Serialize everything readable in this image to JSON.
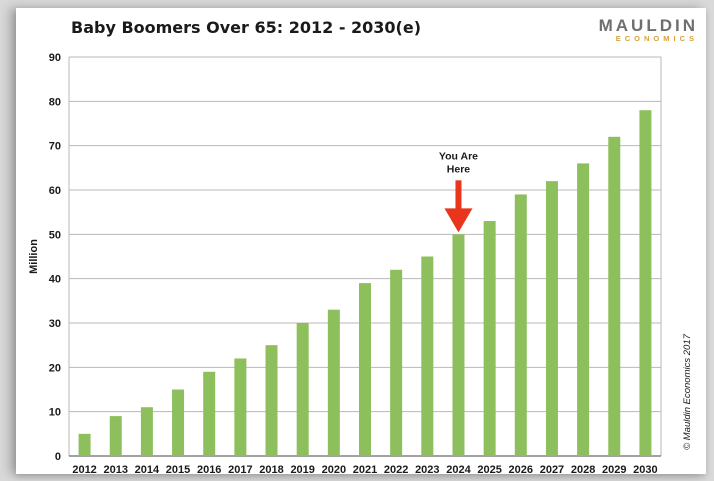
{
  "page": {
    "title": "Baby Boomers Over 65: 2012 - 2030(e)",
    "logo": {
      "top": "MAULDIN",
      "bottom": "ECONOMICS"
    },
    "copyright": "© Mauldin Economics 2017"
  },
  "colors": {
    "bar": "#8dbf5c",
    "arrow": "#e8351c",
    "grid": "#b8b8b8"
  },
  "chart_data": {
    "type": "bar",
    "title": "Baby Boomers Over 65: 2012 - 2030(e)",
    "xlabel": "",
    "ylabel": "Million",
    "ylim": [
      0,
      90
    ],
    "yticks": [
      0,
      10,
      20,
      30,
      40,
      50,
      60,
      70,
      80,
      90
    ],
    "grid": true,
    "categories": [
      "2012",
      "2013",
      "2014",
      "2015",
      "2016",
      "2017",
      "2018",
      "2019",
      "2020",
      "2021",
      "2022",
      "2023",
      "2024",
      "2025",
      "2026",
      "2027",
      "2028",
      "2029",
      "2030"
    ],
    "values": [
      5,
      9,
      11,
      15,
      19,
      22,
      25,
      30,
      33,
      39,
      42,
      45,
      50,
      53,
      59,
      62,
      66,
      72,
      78
    ],
    "annotation": {
      "text_lines": [
        "You Are",
        "Here"
      ],
      "category": "2024"
    }
  }
}
